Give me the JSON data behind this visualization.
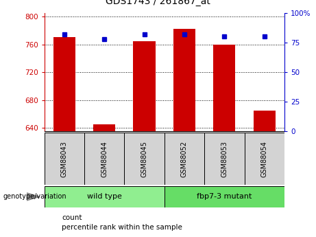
{
  "title": "GDS1743 / 261867_at",
  "samples": [
    "GSM88043",
    "GSM88044",
    "GSM88045",
    "GSM88052",
    "GSM88053",
    "GSM88054"
  ],
  "count_values": [
    770,
    645,
    765,
    782,
    760,
    665
  ],
  "percentile_values": [
    82,
    78,
    82,
    82,
    80,
    80
  ],
  "ylim_left": [
    635,
    805
  ],
  "yticks_left": [
    640,
    680,
    720,
    760,
    800
  ],
  "ylim_right": [
    0,
    100
  ],
  "yticks_right": [
    0,
    25,
    50,
    75,
    100
  ],
  "ytick_labels_right": [
    "0",
    "25",
    "50",
    "75",
    "100%"
  ],
  "bar_color": "#cc0000",
  "dot_color": "#0000cc",
  "grid_y": [
    640,
    680,
    720,
    760,
    800
  ],
  "groups": [
    {
      "label": "wild type",
      "indices": [
        0,
        1,
        2
      ],
      "color": "#90ee90"
    },
    {
      "label": "fbp7-3 mutant",
      "indices": [
        3,
        4,
        5
      ],
      "color": "#66dd66"
    }
  ],
  "group_label": "genotype/variation",
  "legend_count_label": "count",
  "legend_percentile_label": "percentile rank within the sample",
  "bar_width": 0.55,
  "background_color": "#ffffff",
  "plot_bg_color": "#ffffff",
  "sample_box_color": "#d3d3d3",
  "left_axis_color": "#cc0000",
  "right_axis_color": "#0000cc",
  "title_fontsize": 10,
  "tick_fontsize": 7.5,
  "label_fontsize": 8
}
